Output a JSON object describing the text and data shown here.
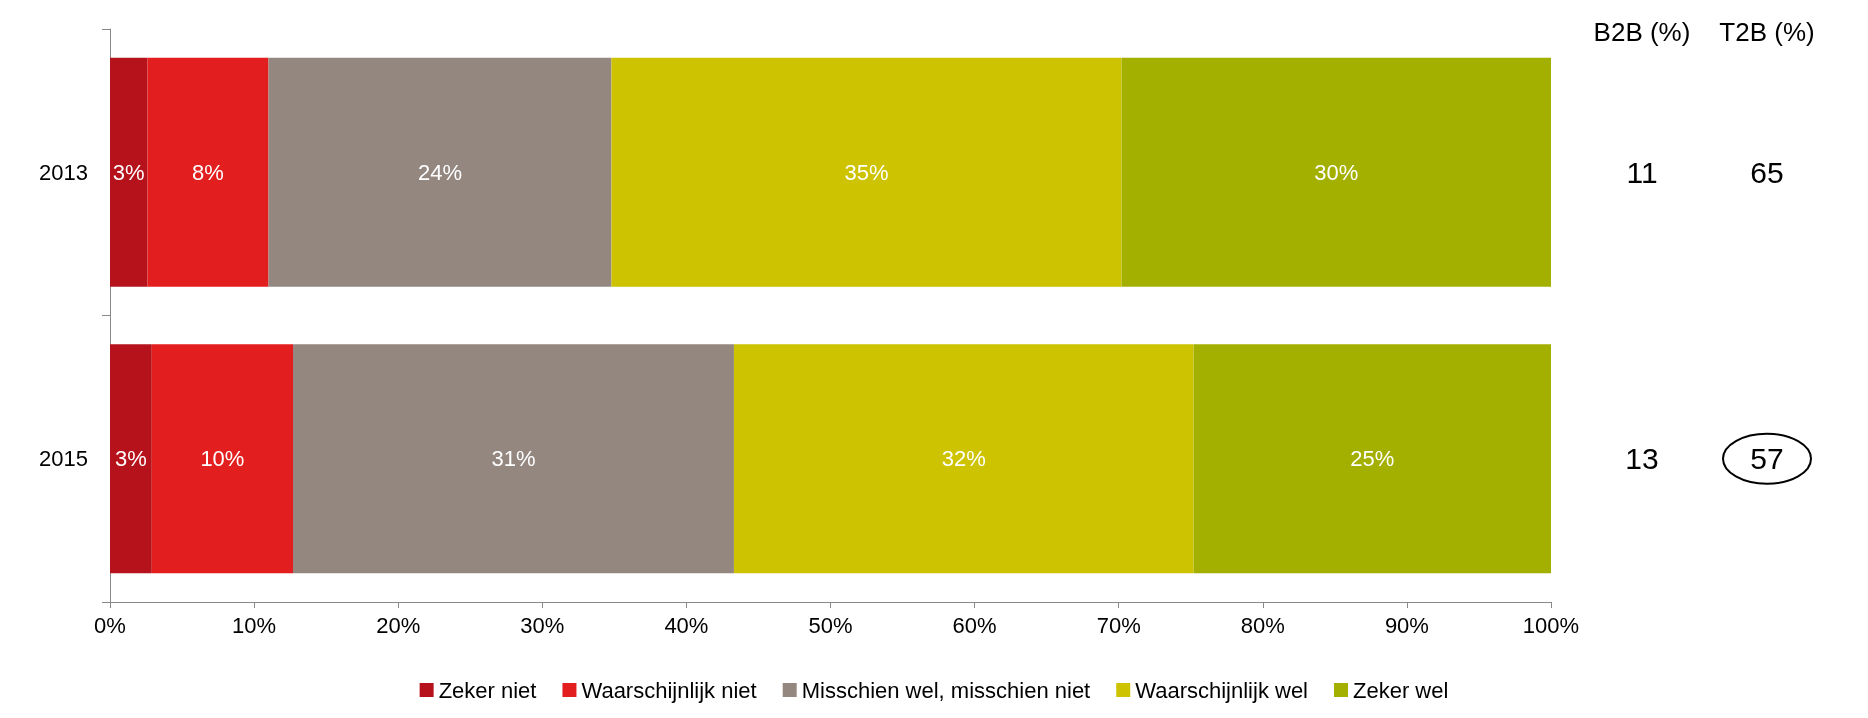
{
  "chart_data": {
    "type": "bar",
    "orientation": "horizontal",
    "stacked": true,
    "categories": [
      "2013",
      "2015"
    ],
    "series": [
      {
        "name": "Zeker niet",
        "color": "#b5121b",
        "values": [
          2.6,
          2.9
        ],
        "value_labels": [
          "3%",
          "3%"
        ]
      },
      {
        "name": "Waarschijnlijk niet",
        "color": "#e31e1e",
        "values": [
          8.4,
          9.8
        ],
        "value_labels": [
          "8%",
          "10%"
        ]
      },
      {
        "name": "Misschien wel, misschien niet",
        "color": "#938780",
        "values": [
          23.8,
          30.6
        ],
        "value_labels": [
          "24%",
          "31%"
        ]
      },
      {
        "name": "Waarschijnlijk wel",
        "color": "#cdc300",
        "values": [
          35.4,
          31.9
        ],
        "value_labels": [
          "35%",
          "32%"
        ]
      },
      {
        "name": "Zeker wel",
        "color": "#a3b000",
        "values": [
          29.8,
          24.8
        ],
        "value_labels": [
          "30%",
          "25%"
        ]
      }
    ],
    "xlim": [
      0,
      100
    ],
    "xticks": [
      {
        "value": 0,
        "label": "0%"
      },
      {
        "value": 10,
        "label": "10%"
      },
      {
        "value": 20,
        "label": "20%"
      },
      {
        "value": 30,
        "label": "30%"
      },
      {
        "value": 40,
        "label": "40%"
      },
      {
        "value": 50,
        "label": "50%"
      },
      {
        "value": 60,
        "label": "60%"
      },
      {
        "value": 70,
        "label": "70%"
      },
      {
        "value": 80,
        "label": "80%"
      },
      {
        "value": 90,
        "label": "90%"
      },
      {
        "value": 100,
        "label": "100%"
      }
    ],
    "grid": false,
    "legend": "bottom",
    "annotations": [
      "B2B (%)",
      "T2B (%)",
      "11",
      "65",
      "13",
      "57"
    ]
  }
}
